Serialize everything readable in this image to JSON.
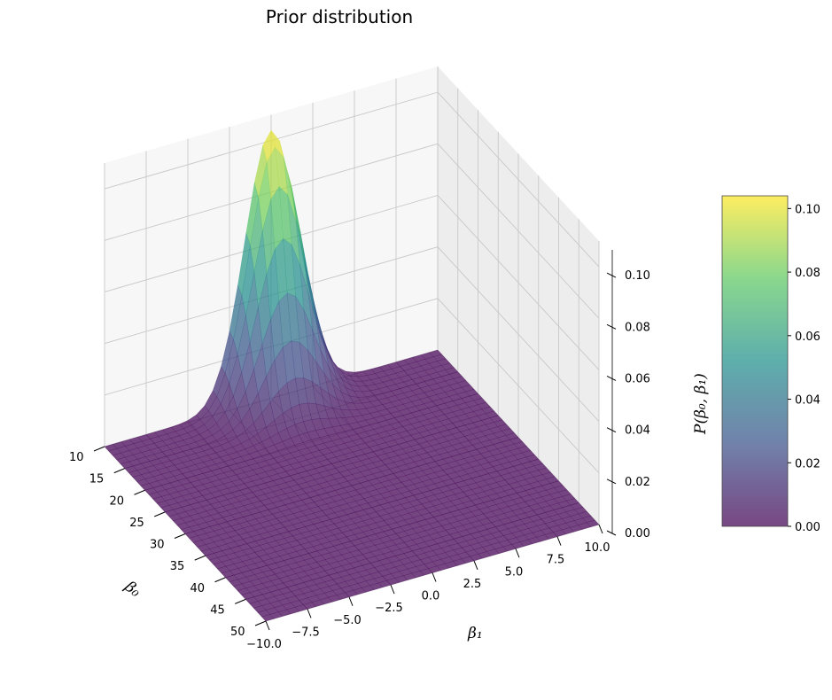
{
  "chart_data": {
    "type": "surface3d",
    "title": "Prior distribution",
    "xlabel": "β₀",
    "ylabel": "β₁",
    "zlabel": "P(β₀, β₁)",
    "x_ticks": [
      "10",
      "15",
      "20",
      "25",
      "30",
      "35",
      "40",
      "45",
      "50"
    ],
    "y_ticks": [
      "−10.0",
      "−7.5",
      "−5.0",
      "−2.5",
      "0.0",
      "2.5",
      "5.0",
      "7.5",
      "10.0"
    ],
    "z_ticks": [
      "0.00",
      "0.02",
      "0.04",
      "0.06",
      "0.08",
      "0.10"
    ],
    "xlim": [
      10,
      50
    ],
    "ylim": [
      -10,
      10
    ],
    "zlim": [
      0,
      0.11
    ],
    "peak": {
      "beta0": 10,
      "beta1": 0,
      "value": 0.104
    },
    "colorbar": {
      "ticks": [
        "0.00",
        "0.02",
        "0.04",
        "0.06",
        "0.08",
        "0.10"
      ],
      "min": 0.0,
      "max": 0.104,
      "colormap": "viridis"
    },
    "grid": true
  }
}
